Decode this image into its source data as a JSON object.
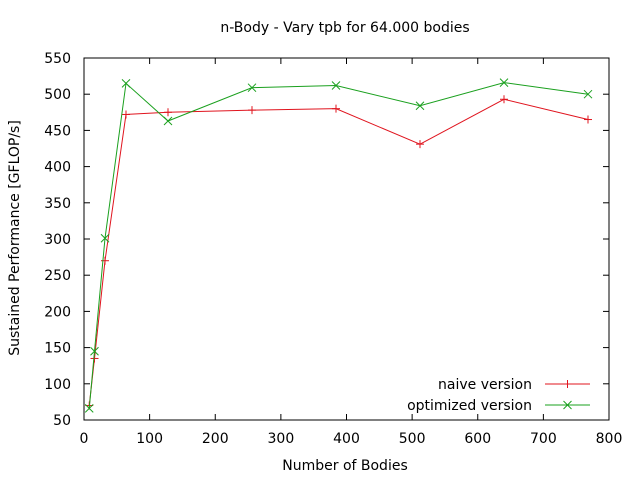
{
  "chart_data": {
    "type": "line",
    "title": "n-Body - Vary tpb for 64.000 bodies",
    "xlabel": "Number of Bodies",
    "ylabel": "Sustained Performance [GFLOP/s]",
    "xlim": [
      0,
      800
    ],
    "ylim": [
      50,
      550
    ],
    "xticks": [
      0,
      100,
      200,
      300,
      400,
      500,
      600,
      700,
      800
    ],
    "yticks": [
      50,
      100,
      150,
      200,
      250,
      300,
      350,
      400,
      450,
      500,
      550
    ],
    "grid": false,
    "legend_position": "bottom-right",
    "series": [
      {
        "name": "naive version",
        "color": "#e0141e",
        "marker": "plus",
        "x": [
          8,
          16,
          32,
          64,
          128,
          256,
          384,
          512,
          640,
          768
        ],
        "y": [
          70,
          135,
          270,
          472,
          475,
          478,
          480,
          431,
          493,
          465
        ]
      },
      {
        "name": "optimized version",
        "color": "#1aa01e",
        "marker": "cross",
        "x": [
          8,
          16,
          32,
          64,
          128,
          256,
          384,
          512,
          640,
          768
        ],
        "y": [
          66,
          145,
          301,
          515,
          463,
          509,
          512,
          484,
          516,
          500
        ]
      }
    ]
  }
}
